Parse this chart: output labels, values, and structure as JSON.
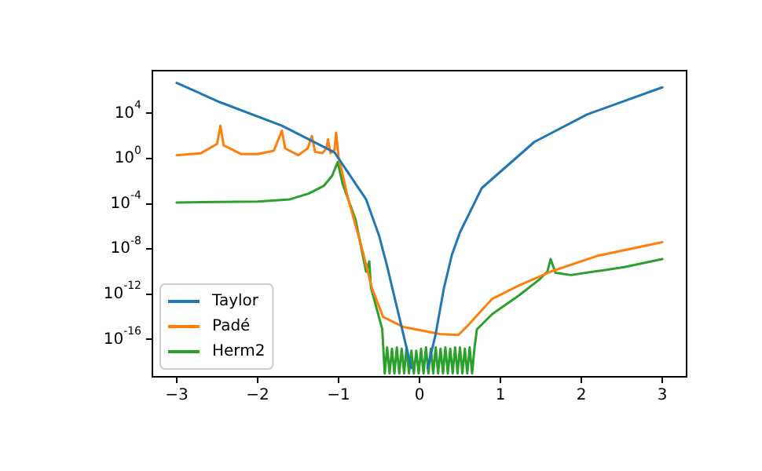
{
  "chart_data": {
    "type": "line",
    "xlim": [
      -3.3,
      3.3
    ],
    "ylim": [
      5e-20,
      60000000.0
    ],
    "log": "y",
    "legend": "bottom left",
    "grid": false,
    "marker": "none",
    "xticks": [
      {
        "value": -3,
        "label": "−3"
      },
      {
        "value": -2,
        "label": "−2"
      },
      {
        "value": -1,
        "label": "−1"
      },
      0,
      1,
      2,
      3
    ],
    "yticks": [
      {
        "value": 1e-16,
        "label": "10$^{-16}$"
      },
      {
        "value": 1e-12,
        "label": "10$^{-12}$"
      },
      {
        "value": 1e-08,
        "label": "10$^{-8}$"
      },
      {
        "value": 0.0001,
        "label": "10$^{-4}$"
      },
      {
        "value": 1,
        "label": "10$^{0}$"
      },
      {
        "value": 10000.0,
        "label": "10$^{4}$"
      }
    ],
    "series": [
      {
        "name": "Taylor",
        "color": "#1f77b4",
        "x": [
          -3,
          -2.47,
          -1.7,
          -1.05,
          -0.66,
          -0.5,
          -0.4,
          -0.3,
          -0.2,
          -0.1,
          0,
          0.1,
          0.2,
          0.3,
          0.4,
          0.5,
          0.77,
          1.42,
          2.07,
          3
        ],
        "values": [
          5000000.0,
          100000.0,
          800.0,
          3.5,
          0.00025,
          1.6e-07,
          3e-10,
          3e-13,
          3e-16,
          3e-19,
          null,
          3e-19,
          3e-16,
          3e-12,
          3e-09,
          3e-07,
          0.0025,
          30,
          8000.0,
          2000000.0
        ]
      },
      {
        "name": "Padé",
        "color": "#ff7f0e",
        "x": [
          -3,
          -2.7,
          -2.5,
          -2.46,
          -2.42,
          -2.2,
          -2,
          -1.8,
          -1.7,
          -1.66,
          -1.5,
          -1.38,
          -1.33,
          -1.29,
          -1.2,
          -1.15,
          -1.13,
          -1.1,
          -1.05,
          -1.03,
          -1,
          -0.88,
          -0.72,
          -0.59,
          -0.45,
          -0.2,
          0.25,
          0.48,
          0.58,
          0.9,
          1.23,
          1.62,
          2.2,
          3
        ],
        "values": [
          2,
          3,
          20,
          800,
          15,
          2.5,
          2.5,
          5,
          300,
          8,
          2,
          8,
          100,
          4,
          3,
          8,
          50,
          3,
          6,
          200,
          1.5,
          0.00025,
          2e-08,
          4e-12,
          1e-14,
          1.3e-15,
          3e-16,
          2.5e-16,
          1.3e-15,
          4e-13,
          6e-12,
          1e-10,
          2.5e-09,
          4e-08
        ]
      },
      {
        "name": "Herm2",
        "color": "#2ca02c",
        "x": [
          -3,
          -2,
          -1.6,
          -1.37,
          -1.18,
          -1.08,
          -1.01,
          -0.95,
          -0.79,
          -0.66,
          -0.63,
          -0.62,
          -0.6,
          -0.46,
          -0.43,
          -0.4,
          -0.37,
          -0.34,
          -0.31,
          -0.28,
          -0.25,
          -0.22,
          -0.19,
          -0.16,
          -0.13,
          -0.1,
          -0.07,
          -0.04,
          -0.01,
          0.02,
          0.05,
          0.08,
          0.11,
          0.14,
          0.17,
          0.2,
          0.23,
          0.26,
          0.29,
          0.32,
          0.35,
          0.38,
          0.41,
          0.44,
          0.47,
          0.5,
          0.53,
          0.56,
          0.59,
          0.62,
          0.65,
          0.68,
          0.71,
          0.9,
          1.23,
          1.48,
          1.58,
          1.62,
          1.68,
          1.87,
          2.53,
          3
        ],
        "values": [
          0.00013,
          0.00016,
          0.00025,
          0.0008,
          0.004,
          0.03,
          0.5,
          0.006,
          4e-06,
          1e-10,
          5e-10,
          8e-10,
          4e-12,
          8e-16,
          1e-19,
          2e-17,
          1e-19,
          1.5e-17,
          1e-19,
          2e-17,
          1e-19,
          1.5e-17,
          1e-19,
          2e-17,
          1e-19,
          1e-17,
          1e-19,
          1e-17,
          1e-19,
          1.5e-17,
          1e-19,
          2e-17,
          1e-19,
          1.5e-17,
          1e-19,
          2e-17,
          1e-19,
          1.5e-17,
          1e-19,
          2e-17,
          1e-19,
          1.5e-17,
          1e-19,
          2e-17,
          1e-19,
          2e-17,
          1e-19,
          1.5e-17,
          1e-19,
          2e-17,
          1e-19,
          2e-17,
          8e-16,
          1.8e-14,
          8e-13,
          2e-11,
          1e-10,
          1.3e-09,
          8e-11,
          5e-11,
          2.5e-10,
          1.3e-09
        ]
      }
    ]
  }
}
